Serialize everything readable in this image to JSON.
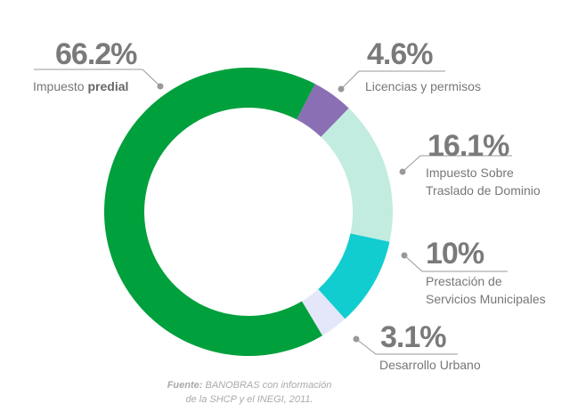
{
  "chart_data": {
    "type": "pie",
    "donut": true,
    "start_angle_deg": 27.5,
    "slices": [
      {
        "label": "Licencias y permisos",
        "value": 4.6,
        "value_label": "4.6%",
        "color": "#8a6fb5"
      },
      {
        "label": "Impuesto Sobre Traslado de Dominio",
        "label_lines": [
          "Impuesto Sobre",
          "Traslado de Dominio"
        ],
        "value": 16.1,
        "value_label": "16.1%",
        "color": "#c2ecdf"
      },
      {
        "label": "Prestación de Servicios Municipales",
        "label_lines": [
          "Prestación de",
          "Servicios Municipales"
        ],
        "value": 10,
        "value_label": "10%",
        "color": "#12cdd0"
      },
      {
        "label": "Desarrollo Urbano",
        "value": 3.1,
        "value_label": "3.1%",
        "color": "#e4e6f9"
      },
      {
        "label": "Impuesto predial",
        "label_plain": "Impuesto ",
        "label_bold": "predial",
        "value": 66.2,
        "value_label": "66.2%",
        "color": "#00a03c"
      }
    ],
    "source_bold": "Fuente:",
    "source_line1": " BANOBRAS con información",
    "source_line2": "de la SHCP y el INEGI, 2011."
  }
}
